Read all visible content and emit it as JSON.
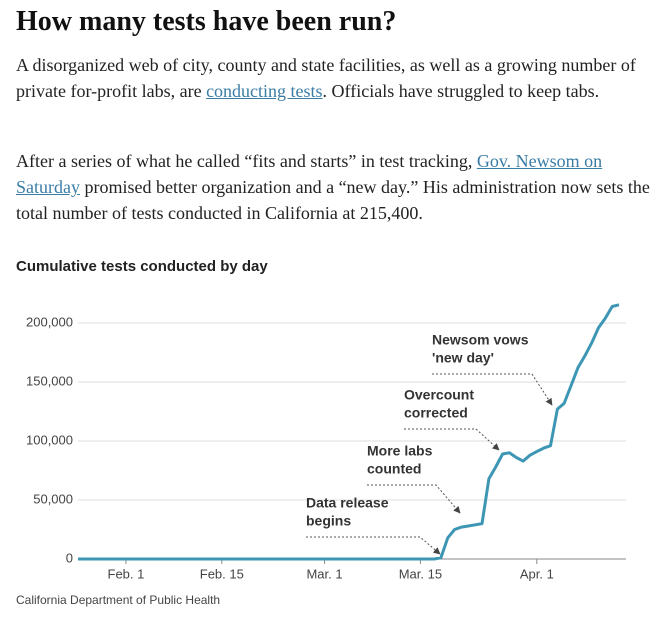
{
  "header": {
    "title": "How many tests have been run?"
  },
  "paragraphs": [
    {
      "before": "A disorganized web of city, county and state facilities, as well as a growing number of private for-profit labs, are ",
      "link": "conducting tests",
      "after": ". Officials have struggled to keep tabs."
    },
    {
      "before": "After a series of what he called “fits and starts” in test tracking, ",
      "link": "Gov. Newsom on Saturday",
      "after": " promised better organization and a “new day.” His administration now sets the total number of tests conducted in California at 215,400."
    }
  ],
  "chart_data": {
    "type": "line",
    "title": "Cumulative tests conducted by day",
    "categories": [
      null,
      null,
      null,
      null,
      null,
      null,
      null,
      "Feb. 1",
      null,
      null,
      null,
      null,
      null,
      null,
      null,
      null,
      null,
      null,
      null,
      null,
      null,
      "Feb. 15",
      null,
      null,
      null,
      null,
      null,
      null,
      null,
      null,
      null,
      null,
      null,
      null,
      null,
      null,
      "Mar. 1",
      null,
      null,
      null,
      null,
      null,
      null,
      null,
      null,
      null,
      null,
      null,
      null,
      null,
      "Mar. 15",
      null,
      null,
      null,
      null,
      null,
      null,
      null,
      null,
      null,
      null,
      null,
      null,
      null,
      null,
      null,
      null,
      "Apr. 1",
      null,
      null,
      null,
      null,
      null,
      null,
      null,
      null,
      null,
      null,
      null,
      null
    ],
    "series": [
      {
        "name": "Cumulative tests",
        "color": "#3d97b4",
        "values": [
          0,
          0,
          0,
          0,
          0,
          0,
          0,
          0,
          0,
          0,
          0,
          0,
          0,
          0,
          0,
          0,
          0,
          0,
          0,
          0,
          0,
          0,
          0,
          0,
          0,
          0,
          0,
          0,
          0,
          0,
          0,
          0,
          0,
          0,
          0,
          0,
          0,
          0,
          0,
          0,
          0,
          0,
          0,
          0,
          0,
          0,
          0,
          0,
          0,
          0,
          0,
          0,
          0,
          1000,
          18000,
          25000,
          27000,
          28000,
          29000,
          30000,
          68000,
          78000,
          89000,
          90000,
          86000,
          83000,
          88000,
          91000,
          94000,
          96000,
          127000,
          132000,
          147000,
          162000,
          172000,
          183000,
          196000,
          204000,
          214000,
          215400
        ]
      }
    ],
    "ylim": [
      0,
      220000
    ],
    "yticks": [
      0,
      {
        "value": 50000,
        "label": "50,000"
      },
      {
        "value": 100000,
        "label": "100,000"
      },
      {
        "value": 150000,
        "label": "150,000"
      },
      {
        "value": 200000,
        "label": "200,000"
      }
    ],
    "grid": true,
    "annotations": [
      {
        "lines": [
          "Data release",
          "begins"
        ]
      },
      {
        "lines": [
          "More labs",
          "counted"
        ]
      },
      {
        "lines": [
          "Overcount",
          "corrected"
        ]
      },
      {
        "lines": [
          "Newsom vows",
          "'new day'"
        ]
      }
    ],
    "source": "California Department of Public Health"
  }
}
